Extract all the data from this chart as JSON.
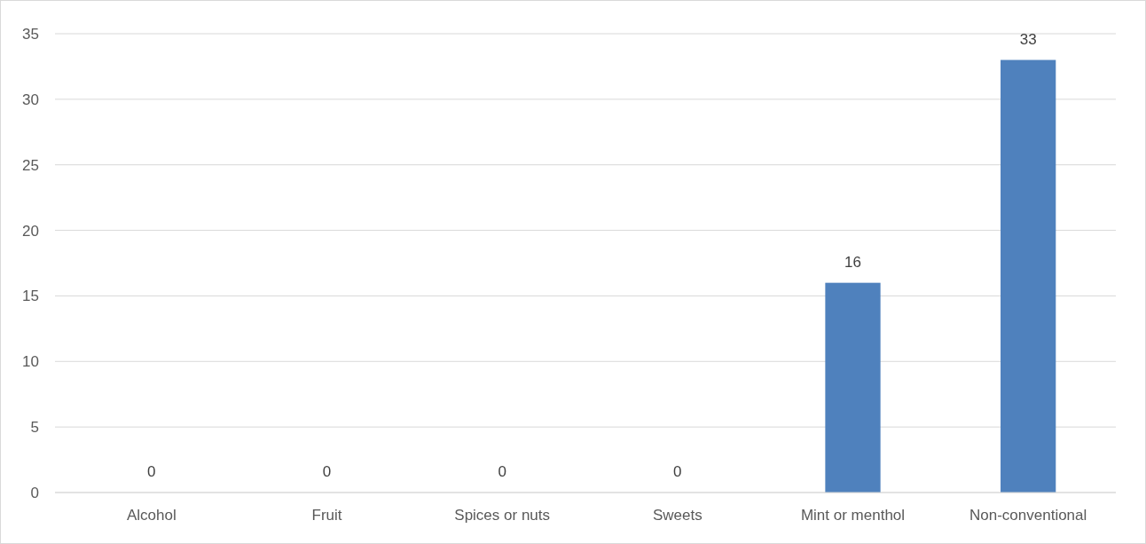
{
  "chart_data": {
    "type": "bar",
    "categories": [
      "Alcohol",
      "Fruit",
      "Spices or nuts",
      "Sweets",
      "Mint or menthol",
      "Non-conventional"
    ],
    "values": [
      0,
      0,
      0,
      0,
      16,
      33
    ],
    "color": "#4f81bd",
    "ylim": [
      0,
      35
    ],
    "yticks": [
      0,
      5,
      10,
      15,
      20,
      25,
      30,
      35
    ],
    "grid": "y",
    "data_labels": true
  }
}
